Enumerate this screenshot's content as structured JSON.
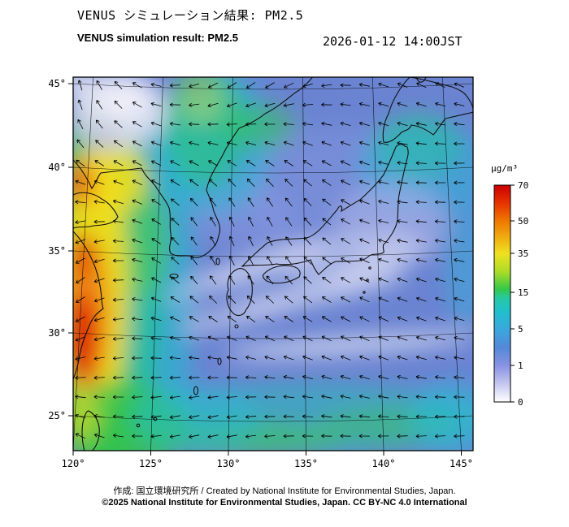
{
  "header": {
    "title_ja": "VENUS シミュレーション結果: PM2.5",
    "title_en": "VENUS simulation result: PM2.5",
    "timestamp": "2026-01-12 14:00JST"
  },
  "chart_data": {
    "type": "heatmap",
    "title": "VENUS simulation result: PM2.5",
    "variable": "PM2.5 surface concentration",
    "unit": "µg/m³",
    "region": {
      "lon_range": [
        120,
        147
      ],
      "lat_range": [
        23,
        46
      ]
    },
    "x_axis": {
      "ticks": [
        "120°",
        "125°",
        "130°",
        "135°",
        "140°",
        "145°"
      ]
    },
    "y_axis": {
      "ticks": [
        "45°",
        "40°",
        "35°",
        "30°",
        "25°"
      ]
    },
    "colorbar": {
      "levels": [
        0,
        1,
        5,
        15,
        35,
        50,
        70
      ],
      "tick_labels": [
        "70",
        "50",
        "35",
        "15",
        "5",
        "1",
        "0"
      ],
      "colors_low_to_high": [
        "#ffffff",
        "#b9bfec",
        "#4f86d8",
        "#22c4c0",
        "#3ec94e",
        "#f0e020",
        "#f07800",
        "#cc0000"
      ]
    },
    "overlays": [
      "wind vector arrows",
      "coastlines",
      "lat-lon graticule"
    ],
    "pattern": [
      {
        "area": "East China coast 120-125E / 26-40N",
        "value": "15-70+ (green-yellow-orange, red peaks near coast 28-34N)"
      },
      {
        "area": "Plume over NE China / Bohai toward 45N",
        "value": "15-50 (green with yellow core)"
      },
      {
        "area": "Sea of Japan, Korea Strait, Japan",
        "value": "0-5 (blue with whitish low-value streaks)"
      },
      {
        "area": "Pacific south and east of Japan",
        "value": "1-15 (blue-cyan streaks, greener along south edge)"
      },
      {
        "area": "Northwest corner 120-124E / 43-46N",
        "value": "0-1 (white patch ringed by green)"
      }
    ]
  },
  "footer": {
    "credit": "作成: 国立環境研究所 / Created by National Institute for Environmental Studies, Japan.",
    "license": "©2025 National Institute for Environmental Studies, Japan. CC BY-NC 4.0 International"
  }
}
